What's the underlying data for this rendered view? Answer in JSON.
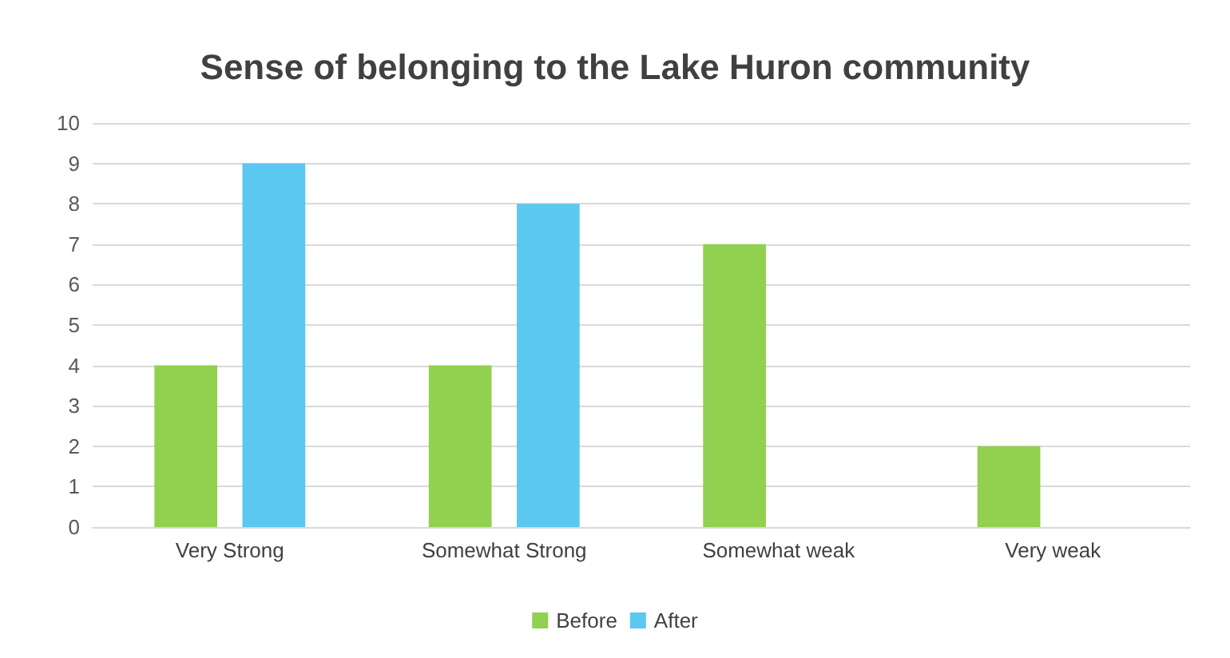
{
  "chart_data": {
    "type": "bar",
    "title": "Sense of belonging to the Lake Huron community",
    "categories": [
      "Very Strong",
      "Somewhat Strong",
      "Somewhat weak",
      "Very weak"
    ],
    "series": [
      {
        "name": "Before",
        "color": "#92d050",
        "values": [
          4,
          4,
          7,
          2
        ]
      },
      {
        "name": "After",
        "color": "#5bc8f0",
        "values": [
          9,
          8,
          0,
          0
        ]
      }
    ],
    "ylim": [
      0,
      10
    ],
    "yticks": [
      0,
      1,
      2,
      3,
      4,
      5,
      6,
      7,
      8,
      9,
      10
    ],
    "grid": "y",
    "legend": "bottom"
  }
}
